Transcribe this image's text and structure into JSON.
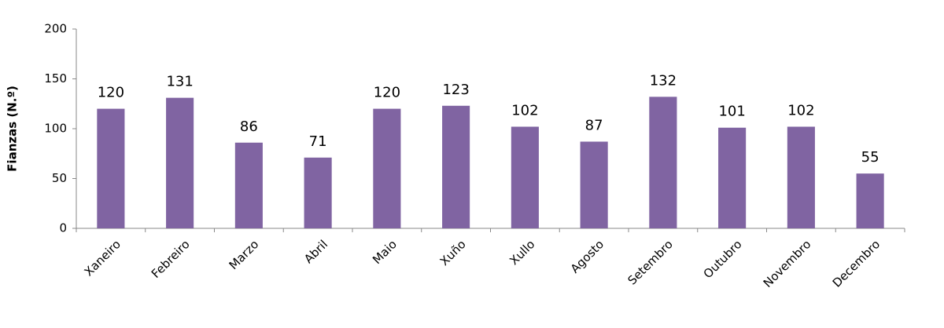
{
  "chart_data": {
    "type": "bar",
    "y_label": "Fianzas (N.º)",
    "categories": [
      "Xaneiro",
      "Febreiro",
      "Marzo",
      "Abril",
      "Maio",
      "Xuño",
      "Xullo",
      "Agosto",
      "Setembro",
      "Outubro",
      "Novembro",
      "Decembro"
    ],
    "values": [
      120,
      131,
      86,
      71,
      120,
      123,
      102,
      87,
      132,
      101,
      102,
      55
    ],
    "color": "#8064a2",
    "ylim": [
      0,
      200
    ],
    "yticks": [
      0,
      50,
      100,
      150,
      200
    ],
    "grid": false
  }
}
